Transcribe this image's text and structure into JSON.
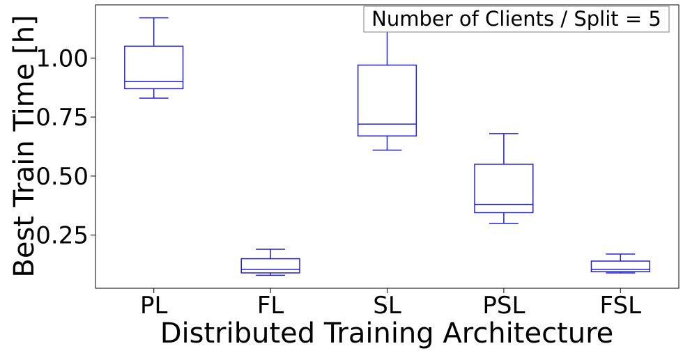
{
  "chart_data": {
    "type": "box",
    "xlabel": "Distributed Training Architecture",
    "ylabel": "Best Train Time [h]",
    "annotation": "Number of Clients / Split = 5",
    "ylim": [
      0.025,
      1.225
    ],
    "yticks": [
      0.25,
      0.5,
      0.75,
      1.0
    ],
    "ytick_labels": [
      "0.25",
      "0.50",
      "0.75",
      "1.00"
    ],
    "categories": [
      "PL",
      "FL",
      "SL",
      "PSL",
      "FSL"
    ],
    "boxes": [
      {
        "category": "PL",
        "whisker_low": 0.83,
        "q1": 0.87,
        "median": 0.9,
        "q3": 1.05,
        "whisker_high": 1.17
      },
      {
        "category": "FL",
        "whisker_low": 0.08,
        "q1": 0.09,
        "median": 0.105,
        "q3": 0.15,
        "whisker_high": 0.19
      },
      {
        "category": "SL",
        "whisker_low": 0.61,
        "q1": 0.67,
        "median": 0.72,
        "q3": 0.97,
        "whisker_high": 1.17
      },
      {
        "category": "PSL",
        "whisker_low": 0.3,
        "q1": 0.345,
        "median": 0.38,
        "q3": 0.55,
        "whisker_high": 0.68
      },
      {
        "category": "FSL",
        "whisker_low": 0.09,
        "q1": 0.095,
        "median": 0.105,
        "q3": 0.14,
        "whisker_high": 0.17
      }
    ],
    "grid": false,
    "legend_position": "top-right",
    "box_color": "#1f1fd6"
  }
}
